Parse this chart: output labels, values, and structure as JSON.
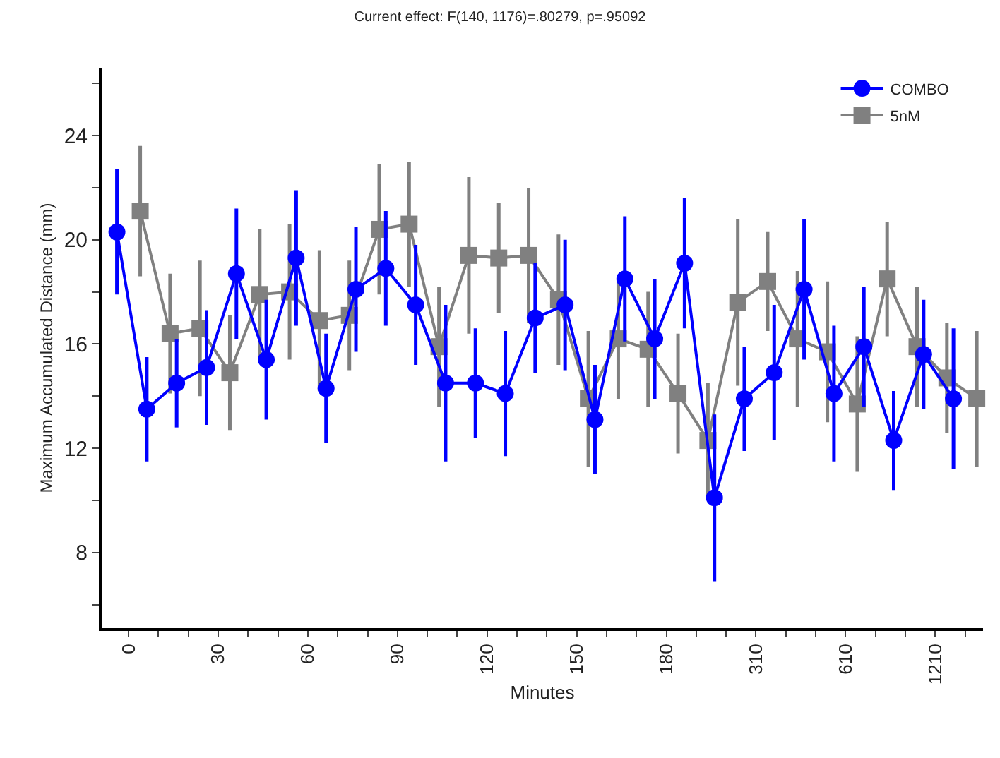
{
  "chart_data": {
    "type": "line",
    "title": "Current effect: F(140, 1176)=.80279, p=.95092",
    "xlabel": "Minutes",
    "ylabel": "Maximum Accumulated Distance (mm)",
    "categories": [
      "0",
      null,
      null,
      "30",
      null,
      null,
      "60",
      null,
      null,
      "90",
      null,
      null,
      "120",
      null,
      null,
      "150",
      null,
      null,
      "180",
      null,
      null,
      "310",
      null,
      null,
      "610",
      null,
      null,
      "1210",
      null
    ],
    "series": [
      {
        "name": "COMBO",
        "color": "#0000ff",
        "marker": "circle",
        "values": [
          20.3,
          13.5,
          14.5,
          15.1,
          18.7,
          15.4,
          19.3,
          14.3,
          18.1,
          18.9,
          17.5,
          14.5,
          14.5,
          14.1,
          17.0,
          17.5,
          13.1,
          18.5,
          16.2,
          19.1,
          10.1,
          13.9,
          14.9,
          18.1,
          14.1,
          15.9,
          12.3,
          15.6,
          13.9
        ],
        "errors": [
          2.4,
          2.0,
          1.7,
          2.2,
          2.5,
          2.3,
          2.6,
          2.1,
          2.4,
          2.2,
          2.3,
          3.0,
          2.1,
          2.4,
          2.1,
          2.5,
          2.1,
          2.4,
          2.3,
          2.5,
          3.2,
          2.0,
          2.6,
          2.7,
          2.6,
          2.3,
          1.9,
          2.1,
          2.7
        ]
      },
      {
        "name": "5nM",
        "color": "#808080",
        "marker": "square",
        "values": [
          21.1,
          16.4,
          16.6,
          14.9,
          17.9,
          18.0,
          16.9,
          17.1,
          20.4,
          20.6,
          15.9,
          19.4,
          19.3,
          19.4,
          17.7,
          13.9,
          16.2,
          15.8,
          14.1,
          12.3,
          17.6,
          18.4,
          16.2,
          15.7,
          13.7,
          18.5,
          15.9,
          14.7,
          13.9
        ],
        "errors": [
          2.5,
          2.3,
          2.6,
          2.2,
          2.5,
          2.6,
          2.7,
          2.1,
          2.5,
          2.4,
          2.3,
          3.0,
          2.1,
          2.6,
          2.5,
          2.6,
          2.3,
          2.2,
          2.3,
          2.2,
          3.2,
          1.9,
          2.6,
          2.7,
          2.6,
          2.2,
          2.3,
          2.1,
          2.6
        ]
      }
    ],
    "ylim": [
      5.1,
      26.6
    ],
    "yticks": [
      {
        "value": 6,
        "label": null
      },
      8,
      {
        "value": 10,
        "label": null
      },
      12,
      {
        "value": 14,
        "label": null
      },
      16,
      {
        "value": 18,
        "label": null
      },
      20,
      {
        "value": 22,
        "label": null
      },
      24,
      {
        "value": 26,
        "label": null
      }
    ],
    "grid": false,
    "legend": "top right"
  }
}
